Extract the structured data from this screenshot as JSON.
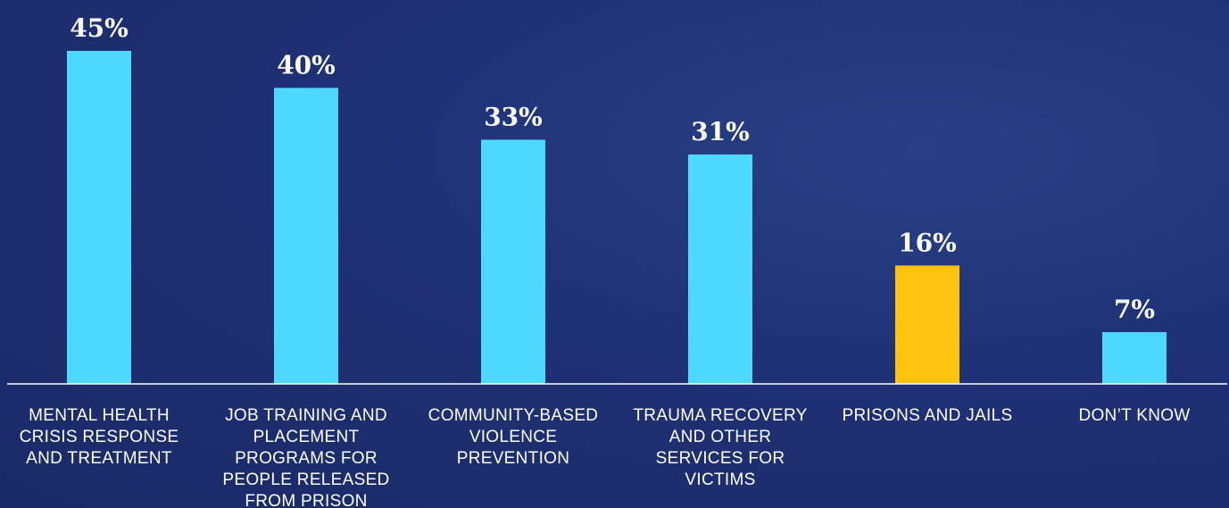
{
  "chart_data": {
    "type": "bar",
    "categories": [
      "MENTAL HEALTH CRISIS RESPONSE AND TREATMENT",
      "JOB TRAINING AND PLACEMENT PROGRAMS FOR PEOPLE RELEASED FROM PRISON",
      "COMMUNITY-BASED VIOLENCE PREVENTION",
      "TRAUMA RECOVERY AND OTHER SERVICES FOR VICTIMS",
      "PRISONS AND JAILS",
      "DON’T KNOW"
    ],
    "values": [
      45,
      40,
      33,
      31,
      16,
      7
    ],
    "value_labels": [
      "45%",
      "40%",
      "33%",
      "31%",
      "16%",
      "7%"
    ],
    "colors": [
      "#4dd8ff",
      "#4dd8ff",
      "#4dd8ff",
      "#4dd8ff",
      "#ffc20e",
      "#4dd8ff"
    ],
    "ylim": [
      0,
      45
    ]
  }
}
